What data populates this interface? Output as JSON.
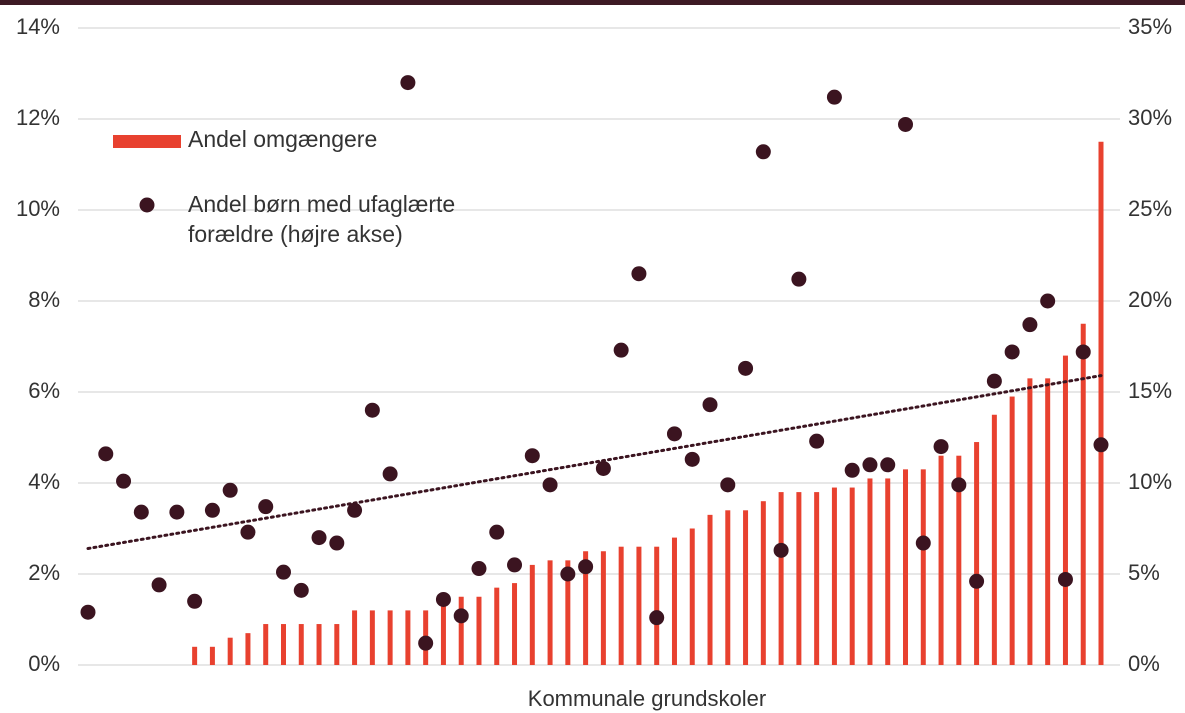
{
  "chart_data": {
    "type": "bar_scatter",
    "x_label": "Kommunale grundskoler",
    "categories": [
      null,
      null,
      null,
      null,
      null,
      null,
      null,
      null,
      null,
      null,
      null,
      null,
      null,
      null,
      null,
      null,
      null,
      null,
      null,
      null,
      null,
      null,
      null,
      null,
      null,
      null,
      null,
      null,
      null,
      null,
      null,
      null,
      null,
      null,
      null,
      null,
      null,
      null,
      null,
      null,
      null,
      null,
      null,
      null,
      null,
      null,
      null,
      null,
      null,
      null,
      null,
      null,
      null,
      null,
      null,
      null,
      null,
      null
    ],
    "series": [
      {
        "name": "Andel omgængere",
        "type": "bar",
        "color": "#e8412f",
        "values": [
          0,
          0,
          0,
          0,
          0,
          0,
          0.4,
          0.4,
          0.6,
          0.7,
          0.9,
          0.9,
          0.9,
          0.9,
          0.9,
          1.2,
          1.2,
          1.2,
          1.2,
          1.2,
          1.4,
          1.5,
          1.5,
          1.7,
          1.8,
          2.2,
          2.3,
          2.3,
          2.5,
          2.5,
          2.6,
          2.6,
          2.6,
          2.8,
          3.0,
          3.3,
          3.4,
          3.4,
          3.6,
          3.8,
          3.8,
          3.8,
          3.9,
          3.9,
          4.1,
          4.1,
          4.3,
          4.3,
          4.6,
          4.6,
          4.9,
          5.5,
          5.9,
          6.3,
          6.3,
          6.8,
          7.5,
          11.5
        ]
      },
      {
        "name": "Andel børn med ufaglærte forældre (højre akse)",
        "type": "scatter",
        "axis": "y2",
        "color": "#3b1420",
        "values": [
          2.9,
          11.6,
          10.1,
          8.4,
          4.4,
          8.4,
          3.5,
          8.5,
          9.6,
          7.3,
          8.7,
          5.1,
          4.1,
          7.0,
          6.7,
          8.5,
          14.0,
          10.5,
          32.0,
          1.2,
          3.6,
          2.7,
          5.3,
          7.3,
          5.5,
          11.5,
          9.9,
          5.0,
          5.4,
          10.8,
          17.3,
          21.5,
          2.6,
          12.7,
          11.3,
          14.3,
          9.9,
          16.3,
          28.2,
          6.3,
          21.2,
          12.3,
          31.2,
          10.7,
          11.0,
          11.0,
          29.7,
          6.7,
          12.0,
          9.9,
          4.6,
          15.6,
          17.2,
          18.7,
          20.0,
          4.7,
          17.2,
          12.1
        ]
      }
    ],
    "trendline": {
      "axis": "y2",
      "color": "#3b1420",
      "values": [
        6.4,
        15.9
      ]
    },
    "ylim": [
      0,
      14
    ],
    "yticks": [
      {
        "value": 0,
        "label": "0%"
      },
      {
        "value": 2,
        "label": "2%"
      },
      {
        "value": 4,
        "label": "4%"
      },
      {
        "value": 6,
        "label": "6%"
      },
      {
        "value": 8,
        "label": "8%"
      },
      {
        "value": 10,
        "label": "10%"
      },
      {
        "value": 12,
        "label": "12%"
      },
      {
        "value": 14,
        "label": "14%"
      }
    ],
    "y2lim": [
      0,
      35
    ],
    "y2ticks": [
      {
        "value": 0,
        "label": "0%"
      },
      {
        "value": 5,
        "label": "5%"
      },
      {
        "value": 10,
        "label": "10%"
      },
      {
        "value": 15,
        "label": "15%"
      },
      {
        "value": 20,
        "label": "20%"
      },
      {
        "value": 25,
        "label": "25%"
      },
      {
        "value": 30,
        "label": "30%"
      },
      {
        "value": 35,
        "label": "35%"
      }
    ],
    "grid": true,
    "legend": "upper left"
  }
}
